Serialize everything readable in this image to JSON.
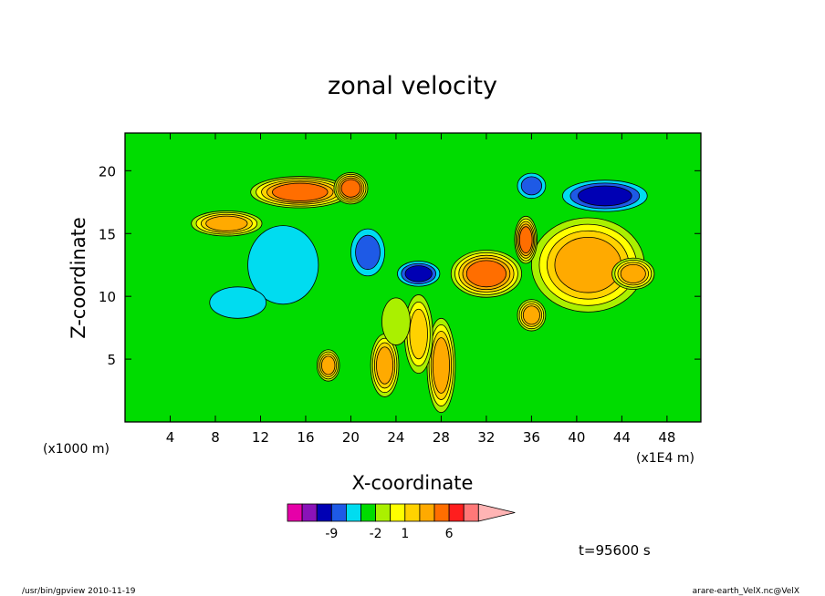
{
  "chart_data": {
    "type": "heatmap",
    "title": "zonal velocity",
    "xlabel": "X-coordinate",
    "ylabel": "Z-coordinate",
    "x_unit": "(x1E4 m)",
    "y_unit": "(x1000 m)",
    "xlim": [
      0,
      51
    ],
    "ylim": [
      0,
      23
    ],
    "x_ticks": [
      4,
      8,
      12,
      16,
      20,
      24,
      28,
      32,
      36,
      40,
      44,
      48
    ],
    "y_ticks": [
      5,
      10,
      15,
      20
    ],
    "time_label": "t=95600 s",
    "colorbar": {
      "colors": [
        "#e600a8",
        "#8a12b8",
        "#0000b4",
        "#1e5ae6",
        "#00dcf0",
        "#00dc00",
        "#aaf000",
        "#ffff00",
        "#ffd200",
        "#ffaa00",
        "#ff6e00",
        "#ff1e1e",
        "#ff7878",
        "#ffb4b4"
      ],
      "tick_labels": [
        {
          "label": "-9",
          "index": 2
        },
        {
          "label": "-2",
          "index": 5
        },
        {
          "label": "1",
          "index": 7
        },
        {
          "label": "6",
          "index": 10
        }
      ]
    },
    "features": [
      {
        "x": 15.5,
        "z": 18.3,
        "rx": 3.5,
        "rz": 1.0,
        "level": 10
      },
      {
        "x": 20.0,
        "z": 18.6,
        "rx": 1.2,
        "rz": 1.0,
        "level": 10
      },
      {
        "x": 9.0,
        "z": 15.8,
        "rx": 2.5,
        "rz": 0.8,
        "level": 9
      },
      {
        "x": 21.5,
        "z": 13.5,
        "rx": 1.2,
        "rz": 1.5,
        "level": 3
      },
      {
        "x": 26.0,
        "z": 11.8,
        "rx": 1.5,
        "rz": 0.8,
        "level": 2
      },
      {
        "x": 14.0,
        "z": 12.5,
        "rx": 2.5,
        "rz": 2.5,
        "level": 4
      },
      {
        "x": 10.0,
        "z": 9.5,
        "rx": 2.0,
        "rz": 1.0,
        "level": 4
      },
      {
        "x": 42.5,
        "z": 18.0,
        "rx": 3.0,
        "rz": 1.0,
        "level": 2
      },
      {
        "x": 36.0,
        "z": 18.8,
        "rx": 1.0,
        "rz": 0.8,
        "level": 3
      },
      {
        "x": 41.0,
        "z": 12.5,
        "rx": 4.0,
        "rz": 3.0,
        "level": 9
      },
      {
        "x": 32.0,
        "z": 11.8,
        "rx": 2.5,
        "rz": 1.5,
        "level": 10
      },
      {
        "x": 35.5,
        "z": 14.5,
        "rx": 0.8,
        "rz": 1.5,
        "level": 10
      },
      {
        "x": 28.0,
        "z": 4.5,
        "rx": 1.0,
        "rz": 3.0,
        "level": 9
      },
      {
        "x": 26.0,
        "z": 7.0,
        "rx": 1.0,
        "rz": 2.5,
        "level": 8
      },
      {
        "x": 23.0,
        "z": 4.5,
        "rx": 1.0,
        "rz": 2.0,
        "level": 9
      },
      {
        "x": 18.0,
        "z": 4.5,
        "rx": 0.8,
        "rz": 1.0,
        "level": 9
      },
      {
        "x": 36.0,
        "z": 8.5,
        "rx": 1.0,
        "rz": 1.0,
        "level": 9
      },
      {
        "x": 45.0,
        "z": 11.8,
        "rx": 1.5,
        "rz": 1.0,
        "level": 9
      },
      {
        "x": 24.0,
        "z": 8.0,
        "rx": 1.0,
        "rz": 1.5,
        "level": 6
      }
    ]
  },
  "footer": {
    "left": "/usr/bin/gpview   2010-11-19",
    "right": "arare-earth_VelX.nc@VelX"
  }
}
